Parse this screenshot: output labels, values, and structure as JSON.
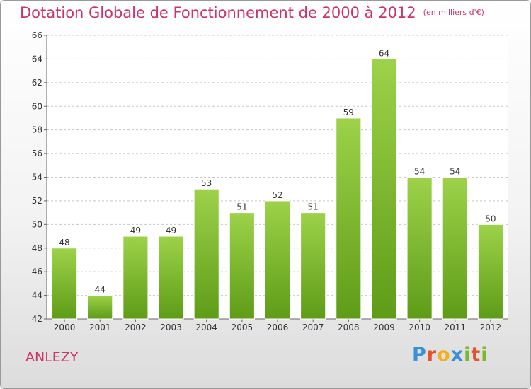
{
  "title": "Dotation Globale de Fonctionnement de 2000 à 2012",
  "unit_note": "(en milliers d'€)",
  "commune": "ANLEZY",
  "brand": {
    "letters": [
      "P",
      "r",
      "o",
      "x",
      "i",
      "t",
      "i"
    ],
    "colors": [
      "#3a8fd6",
      "#e8502a",
      "#f2b021",
      "#3a8fd6",
      "#7cb82f",
      "#e8502a",
      "#7cb82f"
    ]
  },
  "colors": {
    "title": "#cc3366",
    "bar_top": "#9dd24a",
    "bar_bottom": "#5e9c17",
    "grid": "#c8c8c8",
    "axis_text": "#333333"
  },
  "chart_data": {
    "type": "bar",
    "categories": [
      "2000",
      "2001",
      "2002",
      "2003",
      "2004",
      "2005",
      "2006",
      "2007",
      "2008",
      "2009",
      "2010",
      "2011",
      "2012"
    ],
    "values": [
      48,
      44,
      49,
      49,
      53,
      51,
      52,
      51,
      59,
      64,
      54,
      54,
      50
    ],
    "ylim": [
      42,
      66
    ],
    "yticks": [
      42,
      44,
      46,
      48,
      50,
      52,
      54,
      56,
      58,
      60,
      62,
      64,
      66
    ],
    "grid": true,
    "xlabel": "",
    "ylabel": ""
  }
}
